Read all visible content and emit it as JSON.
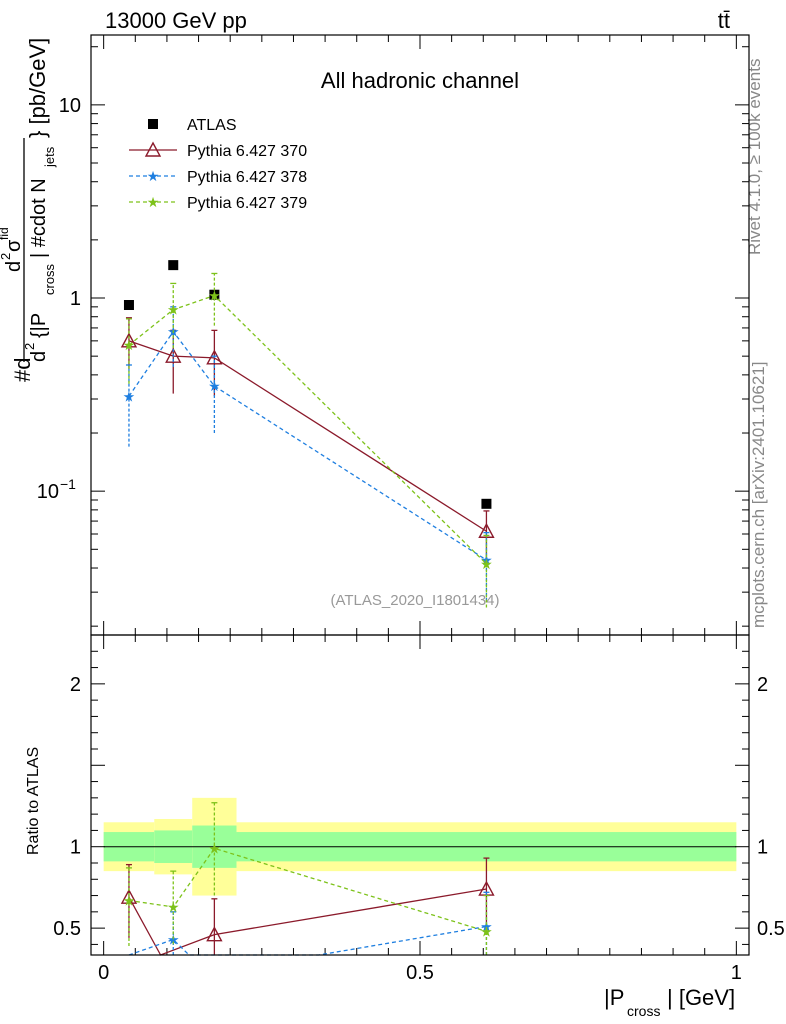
{
  "header": {
    "left": "13000 GeV pp",
    "right": "tt̄"
  },
  "side_labels": {
    "rivet": "Rivet 4.1.0, ≥ 100k events",
    "mcplots": "mcplots.cern.ch [arXiv:2401.10621]"
  },
  "colors": {
    "atlas": "#000000",
    "p370": "#8b1a2b",
    "p378": "#1f7fe0",
    "p379": "#7dc21a",
    "band_outer": "#ffff99",
    "band_inner": "#99ff99",
    "watermark": "#999999"
  },
  "chart_data": [
    {
      "type": "scatter",
      "panel": "main",
      "title": "All hadronic channel",
      "watermark": "(ATLAS_2020_I1801434)",
      "ylabel_parts": {
        "num_prefix": "#d",
        "num_frac_num": "d",
        "num_frac_sup": "2",
        "num_frac_sigma": "σ",
        "num_frac_sigma_sup": "fid",
        "den_d": "d",
        "den_sup": "2",
        "den_brace": "{|P",
        "den_sub": "cross",
        "den_mid": "| #cdot N",
        "den_sub2": "jets",
        "den_close": "} [pb/GeV]"
      },
      "yscale": "log",
      "ylim": [
        0.018,
        23
      ],
      "xlim": [
        -0.02,
        1.02
      ],
      "ytick_labels": [
        {
          "value": 10,
          "base": "10",
          "exp": ""
        },
        {
          "value": 1,
          "base": "1",
          "exp": ""
        },
        {
          "value": 0.1,
          "base": "10",
          "exp": "−1"
        }
      ],
      "legend": [
        {
          "name": "ATLAS",
          "style": "square"
        },
        {
          "name": "Pythia 6.427 370",
          "style": "triangle-solid"
        },
        {
          "name": "Pythia 6.427 378",
          "style": "star-dashed"
        },
        {
          "name": "Pythia 6.427 379",
          "style": "star-dashed"
        }
      ],
      "series": [
        {
          "name": "ATLAS",
          "x": [
            0.04,
            0.11,
            0.175,
            0.605
          ],
          "y": [
            0.92,
            1.48,
            1.04,
            0.086
          ],
          "yerr_lo": [
            0.92,
            1.48,
            1.04,
            0.086
          ],
          "yerr_hi": [
            0.92,
            1.48,
            1.04,
            0.086
          ]
        },
        {
          "name": "Pythia 6.427 370",
          "x": [
            0.04,
            0.11,
            0.175,
            0.605
          ],
          "y": [
            0.6,
            0.5,
            0.49,
            0.062
          ],
          "yerr_lo": [
            0.43,
            0.32,
            0.31,
            0.045
          ],
          "yerr_hi": [
            0.79,
            0.68,
            0.68,
            0.079
          ]
        },
        {
          "name": "Pythia 6.427 378",
          "x": [
            0.04,
            0.11,
            0.175,
            0.605
          ],
          "y": [
            0.31,
            0.67,
            0.35,
            0.044
          ],
          "yerr_lo": [
            0.17,
            0.44,
            0.2,
            0.027
          ],
          "yerr_hi": [
            0.45,
            0.9,
            0.5,
            0.061
          ]
        },
        {
          "name": "Pythia 6.427 379",
          "x": [
            0.04,
            0.11,
            0.175,
            0.605
          ],
          "y": [
            0.57,
            0.87,
            1.03,
            0.042
          ],
          "yerr_lo": [
            0.36,
            0.55,
            0.72,
            0.025
          ],
          "yerr_hi": [
            0.78,
            1.19,
            1.34,
            0.059
          ]
        }
      ]
    },
    {
      "type": "scatter",
      "panel": "ratio",
      "ylabel": "Ratio to ATLAS",
      "xlabel_prefix": "|P",
      "xlabel_sub": "cross",
      "xlabel_suffix": "| [GeV]",
      "ylim": [
        0.335,
        2.3
      ],
      "xlim": [
        -0.02,
        1.02
      ],
      "ytick_labels": [
        "2",
        "1",
        "0.5"
      ],
      "xtick_labels": [
        "0",
        "0.5",
        "1"
      ],
      "bands": [
        {
          "x0": 0.0,
          "x1": 0.08,
          "inner": [
            0.91,
            1.09
          ],
          "outer": [
            0.85,
            1.15
          ]
        },
        {
          "x0": 0.08,
          "x1": 0.14,
          "inner": [
            0.9,
            1.1
          ],
          "outer": [
            0.83,
            1.17
          ]
        },
        {
          "x0": 0.14,
          "x1": 0.21,
          "inner": [
            0.87,
            1.13
          ],
          "outer": [
            0.7,
            1.3
          ]
        },
        {
          "x0": 0.21,
          "x1": 1.0,
          "inner": [
            0.91,
            1.09
          ],
          "outer": [
            0.85,
            1.15
          ]
        }
      ],
      "series": [
        {
          "name": "Pythia 6.427 370",
          "x": [
            0.04,
            0.09,
            0.175,
            0.605
          ],
          "y": [
            0.69,
            0.335,
            0.46,
            0.74
          ],
          "yerr_lo": [
            0.44,
            null,
            0.28,
            0.5
          ],
          "yerr_hi": [
            0.89,
            null,
            0.68,
            0.93
          ]
        },
        {
          "name": "Pythia 6.427 378",
          "x": [
            0.04,
            0.11,
            0.135,
            0.34,
            0.605
          ],
          "y": [
            0.335,
            0.43,
            0.335,
            0.335,
            0.51
          ],
          "yerr_lo": [
            null,
            0.33,
            null,
            null,
            0.3
          ],
          "yerr_hi": [
            null,
            0.6,
            null,
            null,
            0.72
          ]
        },
        {
          "name": "Pythia 6.427 379",
          "x": [
            0.04,
            0.11,
            0.175,
            0.605
          ],
          "y": [
            0.67,
            0.63,
            0.99,
            0.48
          ],
          "yerr_lo": [
            0.39,
            0.4,
            0.7,
            0.29
          ],
          "yerr_hi": [
            0.87,
            0.85,
            1.27,
            0.7
          ]
        }
      ]
    }
  ]
}
